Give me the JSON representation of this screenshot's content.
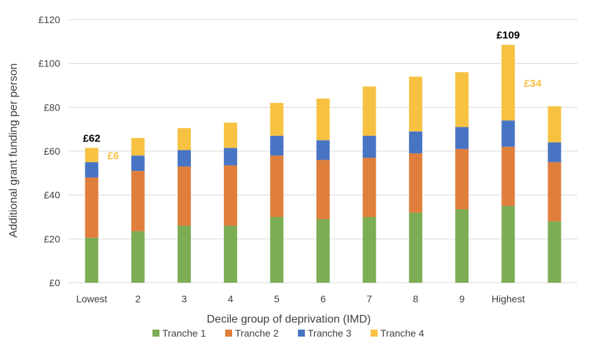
{
  "chart_data": {
    "type": "bar",
    "stacked": true,
    "xlabel": "Decile group of deprivation (IMD)",
    "ylabel": "Additional grant funding per person",
    "ylim": [
      0,
      120
    ],
    "yticks": [
      "£0",
      "£20",
      "£40",
      "£60",
      "£80",
      "£100",
      "£120"
    ],
    "ytick_values": [
      0,
      20,
      40,
      60,
      80,
      100,
      120
    ],
    "grid": true,
    "legend_position": "bottom",
    "categories": [
      "Lowest",
      "2",
      "3",
      "4",
      "5",
      "6",
      "7",
      "8",
      "9",
      "Highest",
      ""
    ],
    "series": [
      {
        "name": "Tranche 1",
        "color": "#7cac54",
        "values": [
          20.5,
          23.5,
          26.0,
          26.0,
          30.0,
          29.0,
          30.0,
          32.0,
          33.5,
          35.0,
          28.0
        ]
      },
      {
        "name": "Tranche 2",
        "color": "#e07e3c",
        "values": [
          27.5,
          27.5,
          27.0,
          27.5,
          28.0,
          27.0,
          27.0,
          27.0,
          27.5,
          27.0,
          27.0
        ]
      },
      {
        "name": "Tranche 3",
        "color": "#4874c4",
        "values": [
          7.0,
          7.0,
          7.5,
          8.0,
          9.0,
          9.0,
          10.0,
          10.0,
          10.0,
          12.0,
          9.0
        ]
      },
      {
        "name": "Tranche 4",
        "color": "#f7c242",
        "values": [
          6.5,
          8.0,
          10.0,
          11.5,
          15.0,
          19.0,
          22.5,
          25.0,
          25.0,
          34.5,
          16.5
        ]
      }
    ],
    "annotations": [
      {
        "text": "£62",
        "category_index": 0,
        "kind": "total",
        "color": "#000000"
      },
      {
        "text": "£6",
        "category_index": 0,
        "kind": "tranche4",
        "color": "#f7c242"
      },
      {
        "text": "£109",
        "category_index": 9,
        "kind": "total",
        "color": "#000000"
      },
      {
        "text": "£34",
        "category_index": 9,
        "kind": "tranche4",
        "color": "#f7c242"
      }
    ]
  }
}
